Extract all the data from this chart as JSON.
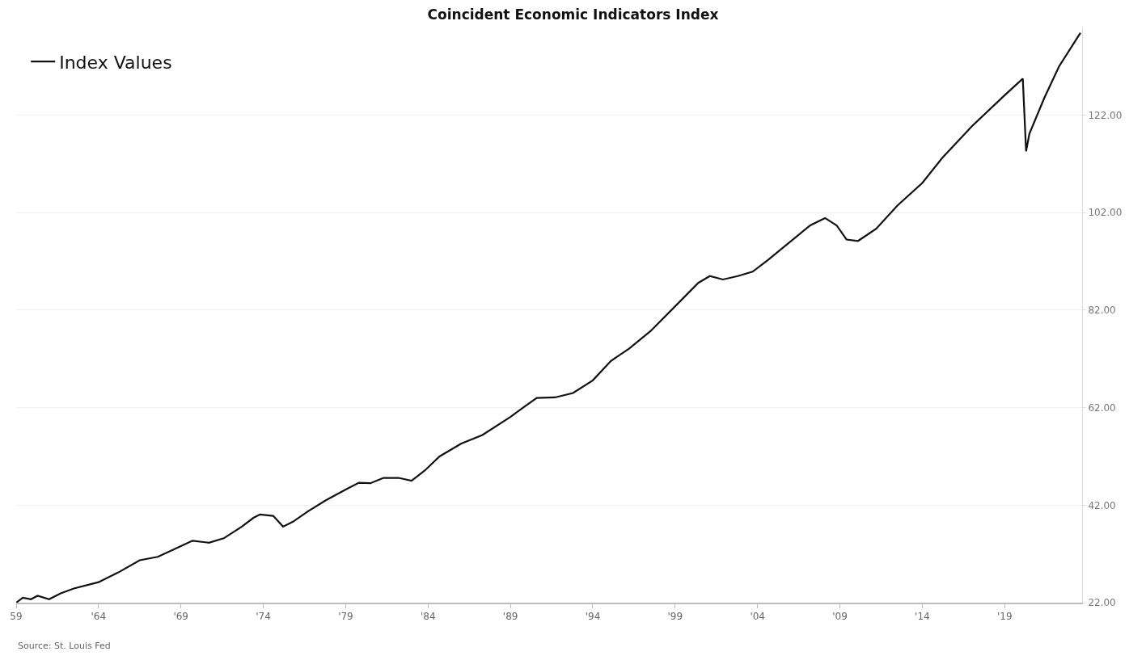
{
  "chart_data": {
    "type": "line",
    "title": "Coincident Economic Indicators Index",
    "x": [
      1959.0,
      1959.4,
      1959.9,
      1960.3,
      1961.0,
      1961.7,
      1962.5,
      1964.0,
      1965.2,
      1966.5,
      1967.6,
      1969.0,
      1969.7,
      1970.7,
      1971.6,
      1972.7,
      1973.4,
      1973.8,
      1974.6,
      1975.2,
      1975.8,
      1976.7,
      1977.8,
      1979.0,
      1979.8,
      1980.5,
      1981.3,
      1982.2,
      1983.0,
      1983.8,
      1984.7,
      1986.0,
      1987.3,
      1989.0,
      1989.8,
      1990.6,
      1991.7,
      1992.8,
      1994.0,
      1995.1,
      1996.2,
      1997.5,
      1999.0,
      2000.4,
      2001.1,
      2001.9,
      2002.8,
      2003.7,
      2004.6,
      2005.9,
      2007.2,
      2008.1,
      2008.8,
      2009.4,
      2010.1,
      2011.2,
      2012.5,
      2014.0,
      2015.2,
      2017.0,
      2019.0,
      2020.1,
      2020.3,
      2020.5,
      2021.4,
      2022.3,
      2023.6
    ],
    "series": [
      {
        "name": "Index Values",
        "color": "#111111",
        "values": [
          22.0,
          23.0,
          22.7,
          23.4,
          22.7,
          23.9,
          24.9,
          26.2,
          28.2,
          30.7,
          31.4,
          33.6,
          34.7,
          34.3,
          35.2,
          37.6,
          39.4,
          40.1,
          39.8,
          37.6,
          38.6,
          40.7,
          43.0,
          45.2,
          46.6,
          46.5,
          47.6,
          47.6,
          47.0,
          49.1,
          52.0,
          54.6,
          56.4,
          60.1,
          62.1,
          64.0,
          64.1,
          65.0,
          67.6,
          71.6,
          74.1,
          77.7,
          82.8,
          87.6,
          89.0,
          88.3,
          89.0,
          89.9,
          92.2,
          95.8,
          99.4,
          100.9,
          99.4,
          96.5,
          96.2,
          98.7,
          103.5,
          108.1,
          113.2,
          119.7,
          126.1,
          129.5,
          114.6,
          118.2,
          125.5,
          132.0,
          138.9
        ]
      }
    ],
    "xlim": [
      1959,
      2023.7
    ],
    "xticks": [
      {
        "value": 1959,
        "label": "59"
      },
      {
        "value": 1964,
        "label": "'64"
      },
      {
        "value": 1969,
        "label": "'69"
      },
      {
        "value": 1974,
        "label": "'74"
      },
      {
        "value": 1979,
        "label": "'79"
      },
      {
        "value": 1984,
        "label": "'84"
      },
      {
        "value": 1989,
        "label": "'89"
      },
      {
        "value": 1994,
        "label": "'94"
      },
      {
        "value": 1999,
        "label": "'99"
      },
      {
        "value": 2004,
        "label": "'04"
      },
      {
        "value": 2009,
        "label": "'09"
      },
      {
        "value": 2014,
        "label": "'14"
      },
      {
        "value": 2019,
        "label": "'19"
      }
    ],
    "ylim": [
      22,
      140
    ],
    "yticks": [
      {
        "value": 22,
        "label": "22.00"
      },
      {
        "value": 42,
        "label": "42.00"
      },
      {
        "value": 62,
        "label": "62.00"
      },
      {
        "value": 82,
        "label": "82.00"
      },
      {
        "value": 102,
        "label": "102.00"
      },
      {
        "value": 122,
        "label": "122.00"
      }
    ],
    "grid": "y",
    "legend": "top left",
    "marker": "none",
    "line_style": "solid",
    "annotations": [
      "Source: St. Louis Fed"
    ]
  }
}
